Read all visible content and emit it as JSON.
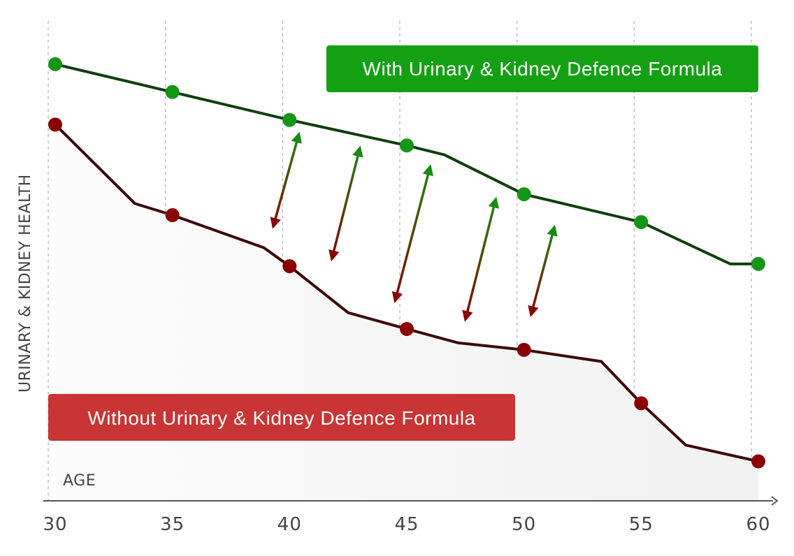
{
  "chart_data": {
    "type": "line",
    "title": "",
    "xlabel": "AGE",
    "ylabel": "URINARY & KIDNEY HEALTH",
    "x_ticks": [
      30,
      35,
      40,
      45,
      50,
      55,
      60
    ],
    "xlim": [
      30,
      60
    ],
    "ylim": [
      0,
      100
    ],
    "grid": "vertical dashed",
    "series": [
      {
        "name": "With Urinary & Kidney Defence Formula",
        "color": "#149614",
        "line_color": "#0f3f0f",
        "points": [
          {
            "x": 30,
            "y": 94
          },
          {
            "x": 35,
            "y": 88
          },
          {
            "x": 40,
            "y": 82
          },
          {
            "x": 45,
            "y": 76.5
          },
          {
            "x": 46.6,
            "y": 74.5
          },
          {
            "x": 50,
            "y": 66
          },
          {
            "x": 55,
            "y": 60
          },
          {
            "x": 58.8,
            "y": 51
          },
          {
            "x": 60,
            "y": 51
          }
        ],
        "markers": [
          30,
          35,
          40,
          45,
          50,
          55,
          60
        ]
      },
      {
        "name": "Without Urinary & Kidney Defence Formula",
        "color": "#8b0000",
        "line_color": "#3f0707",
        "points": [
          {
            "x": 30,
            "y": 81
          },
          {
            "x": 33.4,
            "y": 64
          },
          {
            "x": 35,
            "y": 61.5
          },
          {
            "x": 38.9,
            "y": 54.5
          },
          {
            "x": 40,
            "y": 50.5
          },
          {
            "x": 42.5,
            "y": 40.5
          },
          {
            "x": 45,
            "y": 37
          },
          {
            "x": 47.2,
            "y": 34
          },
          {
            "x": 50,
            "y": 32.5
          },
          {
            "x": 53.3,
            "y": 30
          },
          {
            "x": 55,
            "y": 21
          },
          {
            "x": 56.9,
            "y": 12
          },
          {
            "x": 60,
            "y": 8.5
          }
        ],
        "markers": [
          30,
          35,
          40,
          45,
          50,
          55,
          60
        ]
      }
    ],
    "annotations": [
      {
        "type": "double-arrow",
        "x_low": 39.3,
        "y_low": 59,
        "x_high": 40.4,
        "y_high": 79
      },
      {
        "type": "double-arrow",
        "x_low": 41.8,
        "y_low": 52,
        "x_high": 43.0,
        "y_high": 76
      },
      {
        "type": "double-arrow",
        "x_low": 44.5,
        "y_low": 43,
        "x_high": 46.0,
        "y_high": 72
      },
      {
        "type": "double-arrow",
        "x_low": 47.5,
        "y_low": 39,
        "x_high": 48.8,
        "y_high": 65
      },
      {
        "type": "double-arrow",
        "x_low": 50.3,
        "y_low": 40,
        "x_high": 51.3,
        "y_high": 59
      }
    ]
  },
  "colors": {
    "arrow_up": "#1a8a10",
    "arrow_down": "#8b0000",
    "legend_with_bg": "#13a113",
    "legend_without_bg": "#c93434",
    "grid": "#bbbbbb",
    "axis": "#555555"
  }
}
